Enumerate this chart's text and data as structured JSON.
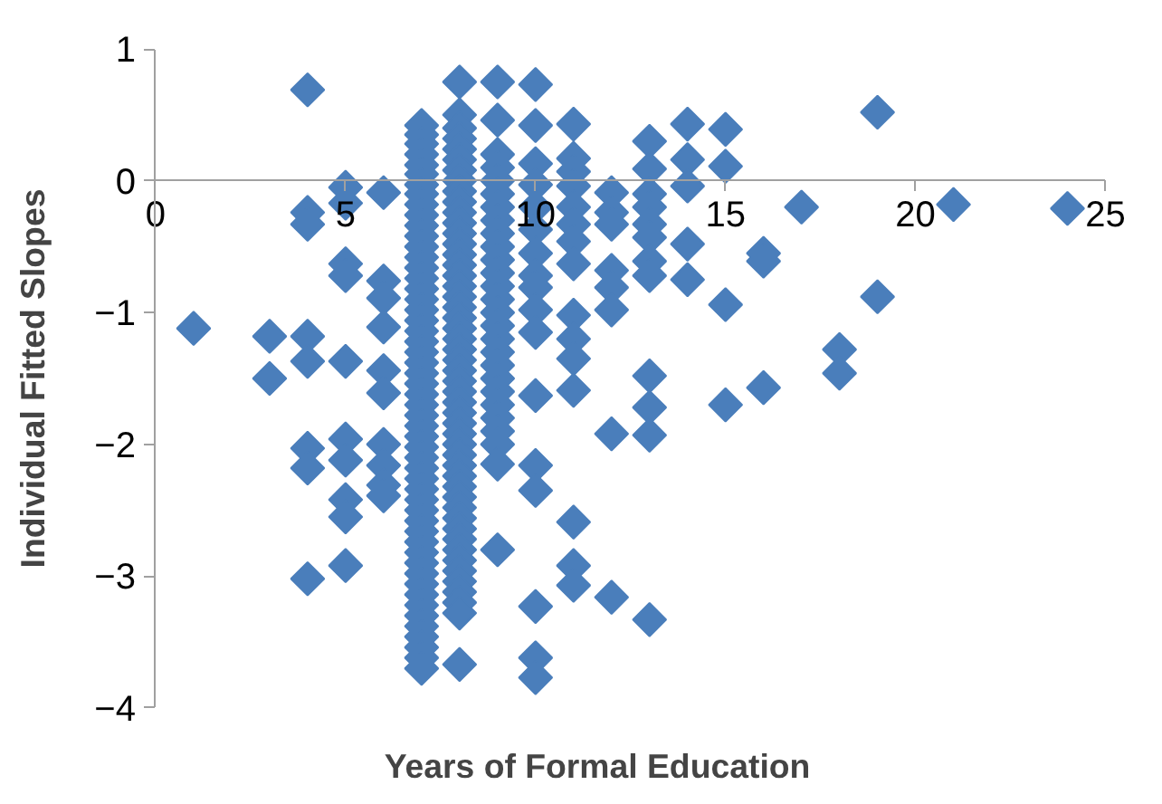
{
  "chart_data": {
    "type": "scatter",
    "xlabel": "Years of Formal Education",
    "ylabel": "Individual Fitted Slopes",
    "xlim": [
      0,
      25
    ],
    "ylim": [
      -4,
      1
    ],
    "xticks": [
      0,
      5,
      10,
      15,
      20,
      25
    ],
    "yticks": [
      -4,
      -3,
      -2,
      -1,
      0,
      1
    ],
    "marker": "diamond",
    "series": [
      {
        "color": "#4a7ebb",
        "x": [
          1,
          3,
          3,
          4,
          4,
          4,
          4,
          4,
          4,
          4,
          4,
          5,
          5,
          5,
          5,
          5,
          5,
          5,
          5,
          5,
          5,
          6,
          6,
          6,
          6,
          6,
          6,
          6,
          6,
          6,
          6,
          7,
          7,
          7,
          7,
          7,
          7,
          7,
          7,
          7,
          7,
          7,
          7,
          7,
          7,
          7,
          7,
          7,
          7,
          7,
          7,
          7,
          7,
          7,
          7,
          7,
          7,
          7,
          7,
          7,
          7,
          7,
          7,
          7,
          7,
          7,
          7,
          7,
          7,
          7,
          7,
          7,
          7,
          7,
          7,
          7,
          7,
          7,
          7,
          7,
          7,
          7,
          7,
          7,
          8,
          8,
          8,
          8,
          8,
          8,
          8,
          8,
          8,
          8,
          8,
          8,
          8,
          8,
          8,
          8,
          8,
          8,
          8,
          8,
          8,
          8,
          8,
          8,
          8,
          8,
          8,
          8,
          8,
          8,
          8,
          8,
          8,
          8,
          8,
          8,
          8,
          8,
          8,
          8,
          8,
          8,
          8,
          8,
          8,
          8,
          8,
          8,
          8,
          8,
          9,
          9,
          9,
          9,
          9,
          9,
          9,
          9,
          9,
          9,
          9,
          9,
          9,
          9,
          9,
          9,
          9,
          9,
          9,
          9,
          9,
          9,
          9,
          9,
          9,
          9,
          9,
          10,
          10,
          10,
          10,
          10,
          10,
          10,
          10,
          10,
          10,
          10,
          10,
          10,
          10,
          10,
          10,
          10,
          11,
          11,
          11,
          11,
          11,
          11,
          11,
          11,
          11,
          11,
          11,
          11,
          11,
          11,
          11,
          12,
          12,
          12,
          12,
          12,
          12,
          12,
          12,
          13,
          13,
          13,
          13,
          13,
          13,
          13,
          13,
          13,
          13,
          13,
          13,
          14,
          14,
          14,
          14,
          14,
          15,
          15,
          15,
          15,
          16,
          16,
          16,
          17,
          18,
          18,
          19,
          19,
          21,
          24
        ],
        "values": [
          -1.12,
          -1.18,
          -1.5,
          0.69,
          -0.24,
          -0.33,
          -1.18,
          -1.37,
          -2.03,
          -2.18,
          -3.02,
          -0.05,
          -0.17,
          -0.63,
          -0.72,
          -1.37,
          -1.96,
          -2.12,
          -2.42,
          -2.55,
          -2.92,
          -0.09,
          -0.76,
          -0.89,
          -1.11,
          -1.44,
          -1.61,
          -2.0,
          -2.16,
          -2.31,
          -2.39,
          0.42,
          0.35,
          0.28,
          0.2,
          0.12,
          0.05,
          -0.03,
          -0.1,
          -0.18,
          -0.26,
          -0.34,
          -0.42,
          -0.5,
          -0.58,
          -0.66,
          -0.74,
          -0.82,
          -0.9,
          -0.98,
          -1.06,
          -1.14,
          -1.22,
          -1.3,
          -1.38,
          -1.46,
          -1.54,
          -1.62,
          -1.7,
          -1.78,
          -1.86,
          -1.94,
          -2.02,
          -2.1,
          -2.18,
          -2.26,
          -2.34,
          -2.42,
          -2.5,
          -2.58,
          -2.66,
          -2.74,
          -2.82,
          -2.9,
          -2.98,
          -3.06,
          -3.14,
          -3.22,
          -3.3,
          -3.38,
          -3.46,
          -3.54,
          -3.62,
          -3.7,
          0.75,
          0.5,
          0.4,
          0.32,
          0.24,
          0.16,
          0.08,
          0.0,
          -0.08,
          -0.16,
          -0.24,
          -0.32,
          -0.4,
          -0.48,
          -0.56,
          -0.64,
          -0.72,
          -0.8,
          -0.88,
          -0.96,
          -1.04,
          -1.12,
          -1.2,
          -1.28,
          -1.36,
          -1.44,
          -1.52,
          -1.6,
          -1.68,
          -1.76,
          -1.84,
          -1.92,
          -2.0,
          -2.08,
          -2.16,
          -2.24,
          -2.32,
          -2.4,
          -2.48,
          -2.56,
          -2.64,
          -2.72,
          -2.8,
          -2.88,
          -2.96,
          -3.04,
          -3.12,
          -3.2,
          -3.28,
          -3.67,
          0.75,
          0.46,
          0.2,
          0.1,
          0.0,
          -0.1,
          -0.2,
          -0.3,
          -0.4,
          -0.5,
          -0.6,
          -0.7,
          -0.8,
          -0.9,
          -1.0,
          -1.1,
          -1.2,
          -1.3,
          -1.4,
          -1.5,
          -1.6,
          -1.7,
          -1.8,
          -1.9,
          -2.0,
          -2.15,
          -2.8,
          0.73,
          0.42,
          0.13,
          -0.03,
          -0.2,
          -0.37,
          -0.55,
          -0.72,
          -0.81,
          -0.98,
          -1.15,
          -1.63,
          -2.16,
          -2.35,
          -3.23,
          -3.62,
          -3.77,
          0.43,
          0.17,
          0.07,
          -0.04,
          -0.2,
          -0.33,
          -0.46,
          -0.63,
          -1.02,
          -1.2,
          -1.35,
          -1.59,
          -2.59,
          -2.92,
          -3.07,
          -0.09,
          -0.24,
          -0.33,
          -0.68,
          -0.81,
          -0.98,
          -1.92,
          -3.16,
          0.3,
          0.09,
          -0.1,
          -0.2,
          -0.33,
          -0.43,
          -0.61,
          -0.72,
          -1.48,
          -1.72,
          -1.93,
          -3.33,
          0.43,
          0.16,
          -0.04,
          -0.48,
          -0.75,
          0.39,
          0.11,
          -0.94,
          -1.7,
          -0.55,
          -0.61,
          -1.57,
          -0.2,
          -1.28,
          -1.46,
          0.52,
          -0.88,
          -0.18,
          -0.21
        ]
      }
    ]
  }
}
